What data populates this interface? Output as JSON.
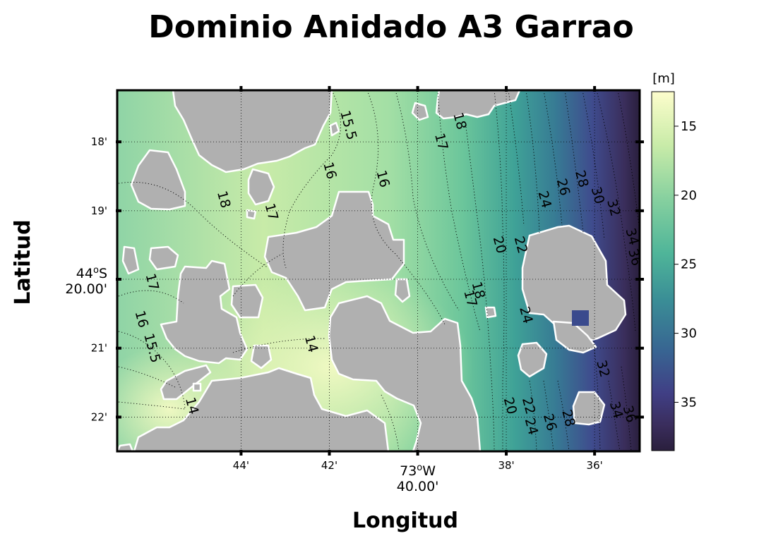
{
  "chart_data": {
    "type": "heatmap",
    "title": "Dominio Anidado A3 Garrao",
    "xlabel": "Longitud",
    "ylabel": "Latitud",
    "xlim": [
      -73.78,
      -73.583
    ],
    "ylim": [
      -44.375,
      -44.2875
    ],
    "x_ticks": [
      {
        "value": -73.7333,
        "label": "44'"
      },
      {
        "value": -73.7,
        "label": "42'"
      },
      {
        "value": -73.6667,
        "label": "73°W|40.00'"
      },
      {
        "value": -73.6333,
        "label": "38'"
      },
      {
        "value": -73.6,
        "label": "36'"
      }
    ],
    "y_ticks": [
      {
        "value": -44.3,
        "label": "18'"
      },
      {
        "value": -44.3167,
        "label": "19'"
      },
      {
        "value": -44.3333,
        "label": "44°S|20.00'"
      },
      {
        "value": -44.35,
        "label": "21'"
      },
      {
        "value": -44.3667,
        "label": "22'"
      }
    ],
    "grid": true,
    "colorbar": {
      "label": "[m]",
      "min": 12.5,
      "max": 38.5,
      "ticks": [
        15,
        20,
        25,
        30,
        35
      ],
      "colormap": "haline_r"
    },
    "contour_labels": [
      {
        "value": 15.5,
        "text": "15.5",
        "x": -73.693,
        "y": -44.296
      },
      {
        "value": 18,
        "text": "18",
        "x": -73.651,
        "y": -44.295
      },
      {
        "value": 17,
        "text": "17",
        "x": -73.658,
        "y": -44.3
      },
      {
        "value": 16,
        "text": "16",
        "x": -73.7,
        "y": -44.307
      },
      {
        "value": 16,
        "text": "16",
        "x": -73.68,
        "y": -44.309
      },
      {
        "value": 18,
        "text": "18",
        "x": -73.74,
        "y": -44.314
      },
      {
        "value": 17,
        "text": "17",
        "x": -73.722,
        "y": -44.317
      },
      {
        "value": 24,
        "text": "24",
        "x": -73.619,
        "y": -44.314
      },
      {
        "value": 26,
        "text": "26",
        "x": -73.612,
        "y": -44.311
      },
      {
        "value": 28,
        "text": "28",
        "x": -73.605,
        "y": -44.309
      },
      {
        "value": 30,
        "text": "30",
        "x": -73.599,
        "y": -44.313
      },
      {
        "value": 32,
        "text": "32",
        "x": -73.593,
        "y": -44.316
      },
      {
        "value": 20,
        "text": "20",
        "x": -73.636,
        "y": -44.325
      },
      {
        "value": 22,
        "text": "22",
        "x": -73.628,
        "y": -44.325
      },
      {
        "value": 34,
        "text": "34",
        "x": -73.586,
        "y": -44.323
      },
      {
        "value": 36,
        "text": "36",
        "x": -73.585,
        "y": -44.328
      },
      {
        "value": 17,
        "text": "17",
        "x": -73.767,
        "y": -44.334
      },
      {
        "value": 18,
        "text": "18",
        "x": -73.644,
        "y": -44.336
      },
      {
        "value": 17,
        "text": "17",
        "x": -73.647,
        "y": -44.338
      },
      {
        "value": 24,
        "text": "24",
        "x": -73.626,
        "y": -44.342
      },
      {
        "value": 16,
        "text": "16",
        "x": -73.771,
        "y": -44.343
      },
      {
        "value": 15.5,
        "text": "15.5",
        "x": -73.767,
        "y": -44.35
      },
      {
        "value": 14,
        "text": "14",
        "x": -73.707,
        "y": -44.349
      },
      {
        "value": 32,
        "text": "32",
        "x": -73.597,
        "y": -44.355
      },
      {
        "value": 14,
        "text": "14",
        "x": -73.752,
        "y": -44.364
      },
      {
        "value": 20,
        "text": "20",
        "x": -73.632,
        "y": -44.364
      },
      {
        "value": 22,
        "text": "22",
        "x": -73.625,
        "y": -44.364
      },
      {
        "value": 24,
        "text": "24",
        "x": -73.624,
        "y": -44.369
      },
      {
        "value": 26,
        "text": "26",
        "x": -73.617,
        "y": -44.368
      },
      {
        "value": 28,
        "text": "28",
        "x": -73.61,
        "y": -44.367
      },
      {
        "value": 34,
        "text": "34",
        "x": -73.592,
        "y": -44.365
      },
      {
        "value": 36,
        "text": "36",
        "x": -73.587,
        "y": -44.366
      }
    ]
  },
  "colors": {
    "land": "#b0b0b0",
    "coastline": "#ffffff",
    "frame": "#000000",
    "gridline": "#000000"
  }
}
